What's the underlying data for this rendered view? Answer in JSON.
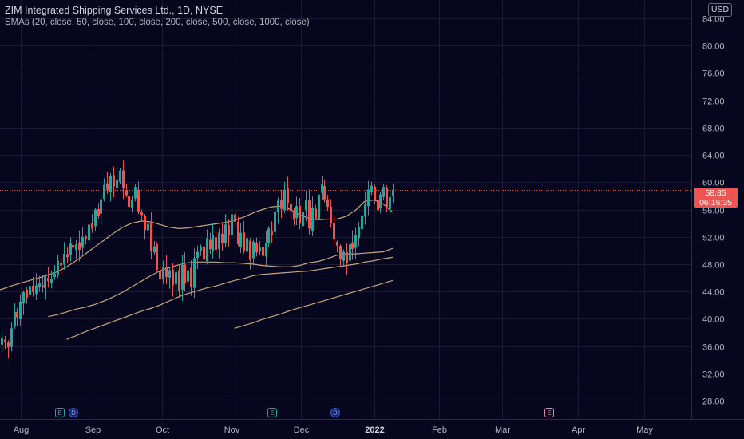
{
  "legend": {
    "title": "ZIM Integrated Shipping Services Ltd., 1D, NYSE",
    "studies": "SMAs (20, close, 50, close, 100, close, 200, close, 500, close, 1000, close)"
  },
  "currency": "USD",
  "last_price": {
    "price": "58.85",
    "countdown": "06:16:35"
  },
  "events": [
    {
      "type": "E",
      "label": "E",
      "icon": "earnings-icon"
    },
    {
      "type": "D",
      "label": "D",
      "icon": "dividend-icon"
    },
    {
      "type": "E",
      "label": "E",
      "icon": "earnings-icon"
    },
    {
      "type": "D",
      "label": "D",
      "icon": "dividend-icon"
    },
    {
      "type": "E",
      "label": "E",
      "icon": "earnings-future-icon"
    }
  ],
  "colors": {
    "background": "#06061f",
    "up": "#26a69a",
    "down": "#ef5350",
    "sma": "#c9a57a",
    "last_price_line": "#ef5350",
    "grid": "#1a1a36"
  },
  "chart_data": {
    "type": "candlestick",
    "title": "ZIM Integrated Shipping Services Ltd., 1D, NYSE",
    "x_tick_labels": [
      "Aug",
      "Sep",
      "Oct",
      "Nov",
      "Dec",
      "2022",
      "Feb",
      "Mar",
      "Apr",
      "May"
    ],
    "y_tick_labels": [
      "84.00",
      "80.00",
      "76.00",
      "72.00",
      "68.00",
      "64.00",
      "60.00",
      "56.00",
      "52.00",
      "48.00",
      "44.00",
      "40.00",
      "36.00",
      "32.00",
      "28.00"
    ],
    "ylim": [
      25.3,
      86.7
    ],
    "y_scale": "linear",
    "grid": true,
    "axis_position": "right",
    "last_price": 58.85,
    "closes": [
      37.2,
      36.5,
      35.8,
      38.6,
      41.0,
      40.2,
      42.5,
      43.9,
      43.1,
      44.8,
      43.9,
      44.9,
      45.2,
      44.6,
      46.2,
      45.5,
      45.9,
      46.6,
      48.5,
      47.8,
      49.5,
      49.0,
      51.0,
      50.4,
      50.9,
      50.1,
      52.0,
      51.6,
      53.8,
      53.2,
      56.0,
      55.0,
      57.5,
      59.6,
      58.9,
      60.9,
      59.4,
      60.4,
      61.7,
      59.1,
      58.1,
      56.4,
      57.4,
      59.3,
      55.7,
      55.2,
      53.0,
      53.9,
      49.9,
      50.6,
      47.2,
      45.8,
      47.6,
      46.1,
      47.1,
      44.9,
      46.8,
      44.1,
      47.9,
      45.2,
      47.1,
      44.6,
      48.9,
      49.8,
      50.6,
      48.7,
      51.8,
      50.2,
      52.3,
      50.1,
      52.6,
      51.1,
      53.8,
      52.2,
      55.3,
      54.2,
      50.9,
      52.6,
      49.9,
      51.8,
      48.6,
      51.3,
      49.7,
      50.4,
      49.2,
      51.1,
      53.2,
      52.3,
      55.7,
      57.3,
      56.1,
      58.9,
      57.0,
      55.8,
      54.5,
      56.5,
      53.9,
      55.6,
      57.4,
      53.2,
      56.3,
      54.7,
      58.2,
      59.8,
      57.5,
      56.4,
      53.9,
      51.6,
      50.7,
      48.8,
      49.8,
      48.2,
      50.9,
      50.2,
      52.2,
      53.5,
      55.1,
      56.8,
      58.9,
      59.5,
      57.4,
      55.9,
      58.2,
      59.3,
      56.4,
      57.8,
      58.9
    ],
    "series": [
      {
        "values": [
          44.5,
          44.4,
          44.3,
          44.2,
          44.3,
          44.8,
          45.2,
          45.6,
          46.0,
          46.4,
          46.9,
          47.6,
          48.5,
          49.5,
          50.5,
          51.5,
          52.5,
          53.4,
          54.0,
          54.3,
          54.2,
          53.8,
          53.4,
          53.2,
          53.3,
          53.5,
          53.7,
          53.9,
          54.1,
          54.4,
          54.9,
          55.5,
          56.0,
          56.4,
          56.5,
          56.0,
          55.2,
          54.7,
          54.5,
          54.6,
          54.6,
          55.0,
          55.9,
          57.2,
          57.4,
          56.8,
          55.6
        ]
      },
      {
        "values": [
          40.3,
          40.6,
          41.0,
          41.4,
          41.7,
          42.1,
          42.6,
          43.2,
          43.9,
          44.7,
          45.5,
          46.3,
          47.0,
          47.5,
          47.9,
          48.2,
          48.3,
          48.3,
          48.3,
          48.2,
          48.2,
          48.1,
          48.0,
          47.8,
          47.7,
          47.6,
          47.6,
          47.8,
          48.2,
          48.4,
          48.8,
          49.3,
          49.5,
          49.5,
          49.6,
          49.7,
          49.8,
          50.3
        ]
      },
      {
        "values": [
          37.0,
          37.5,
          38.1,
          38.6,
          39.1,
          39.6,
          40.1,
          40.6,
          41.1,
          41.5,
          42.0,
          42.6,
          43.2,
          43.7,
          44.1,
          44.5,
          44.8,
          45.2,
          45.6,
          45.9,
          46.3,
          46.5,
          46.6,
          46.7,
          46.8,
          46.9,
          47.0,
          47.2,
          47.4,
          47.6,
          47.8,
          48.0,
          48.3,
          48.5,
          48.8,
          49.0
        ]
      },
      {
        "values": [
          38.6,
          39.0,
          39.4,
          39.9,
          40.3,
          40.7,
          41.2,
          41.6,
          42.0,
          42.4,
          42.8,
          43.2,
          43.6,
          44.0,
          44.4,
          44.8,
          45.2,
          45.6
        ]
      }
    ]
  }
}
